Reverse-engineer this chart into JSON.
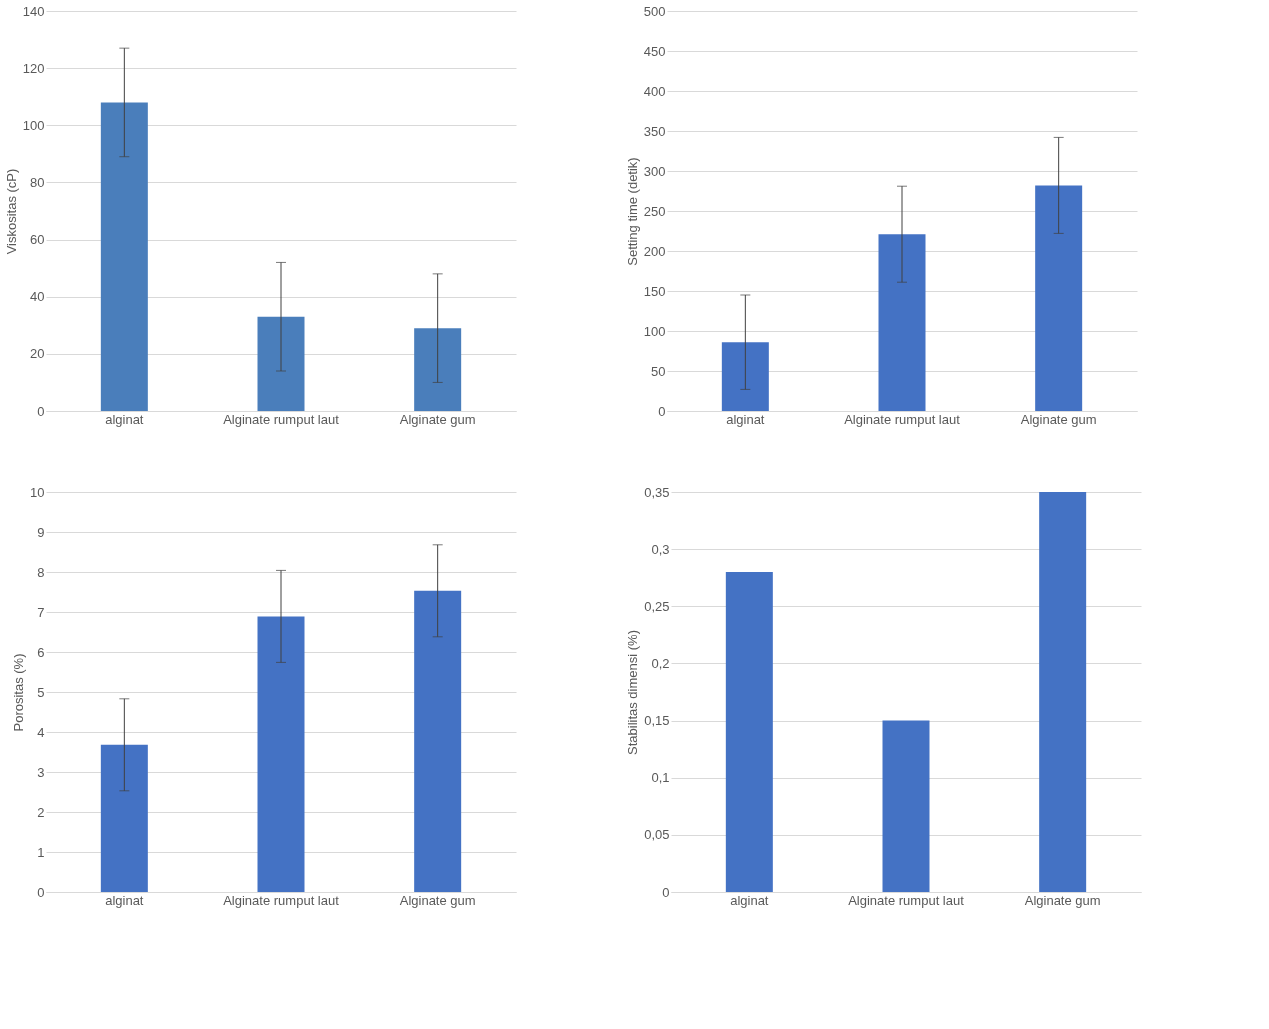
{
  "chart_data": [
    {
      "type": "bar",
      "ylabel": "Viskositas (cP)",
      "categories": [
        "alginat",
        "Alginate rumput laut",
        "Alginate gum"
      ],
      "values": [
        108,
        33,
        29
      ],
      "errors": [
        19,
        19,
        19
      ],
      "color": "#4a7ebb",
      "ylim": [
        0,
        140
      ],
      "yticks": [
        0,
        20,
        40,
        60,
        80,
        100,
        120,
        140
      ],
      "grid": "y"
    },
    {
      "type": "bar",
      "ylabel": "Setting time (detik)",
      "categories": [
        "alginat",
        "Alginate rumput laut",
        "Alginate gum"
      ],
      "values": [
        86,
        221,
        282
      ],
      "errors": [
        59,
        60,
        60
      ],
      "color": "#4472c4",
      "ylim": [
        0,
        500
      ],
      "yticks": [
        0,
        50,
        100,
        150,
        200,
        250,
        300,
        350,
        400,
        450,
        500
      ],
      "grid": "y"
    },
    {
      "type": "bar",
      "ylabel": "Porositas (%)",
      "categories": [
        "alginat",
        "Alginate rumput laut",
        "Alginate gum"
      ],
      "values": [
        3.68,
        6.89,
        7.53
      ],
      "errors": [
        1.15,
        1.15,
        1.15
      ],
      "color": "#4472c4",
      "ylim": [
        0,
        10
      ],
      "yticks": [
        0,
        1,
        2,
        3,
        4,
        5,
        6,
        7,
        8,
        9,
        10
      ],
      "grid": "y"
    },
    {
      "type": "bar",
      "ylabel": "Stabilitas dimensi (%)",
      "categories": [
        "alginat",
        "Alginate rumput laut",
        "Alginate gum"
      ],
      "values": [
        0.28,
        0.15,
        0.35
      ],
      "color": "#4472c4",
      "ylim": [
        0,
        0.35
      ],
      "yticks": [
        0,
        {
          "value": 0.05,
          "label": "0,05"
        },
        {
          "value": 0.1,
          "label": "0,1"
        },
        {
          "value": 0.15,
          "label": "0,15"
        },
        {
          "value": 0.2,
          "label": "0,2"
        },
        {
          "value": 0.25,
          "label": "0,25"
        },
        {
          "value": 0.3,
          "label": "0,3"
        },
        {
          "value": 0.35,
          "label": "0,35"
        }
      ],
      "grid": "y"
    }
  ]
}
